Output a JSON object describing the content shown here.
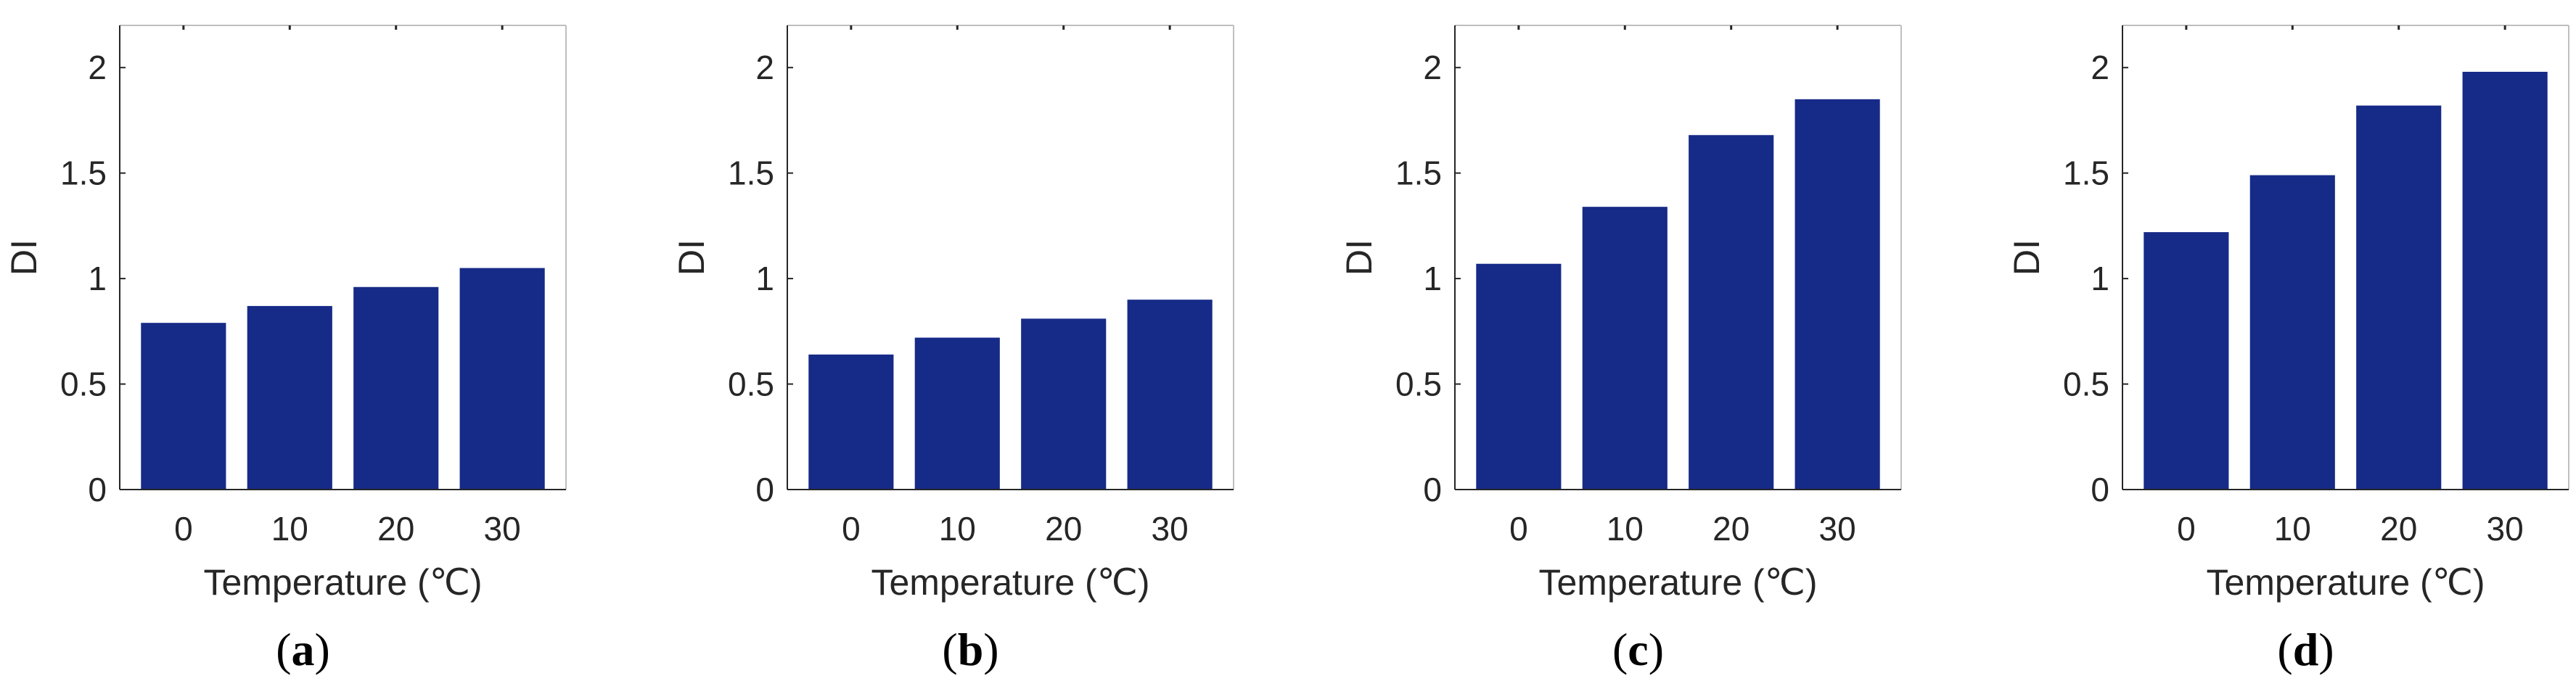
{
  "chart_data": [
    {
      "type": "bar",
      "panel_label": "a",
      "categories": [
        "0",
        "10",
        "20",
        "30"
      ],
      "values": [
        0.79,
        0.87,
        0.96,
        1.05
      ],
      "xlabel": "Temperature (℃)",
      "ylabel": "DI",
      "ylim": [
        0,
        2.2
      ],
      "yticks": [
        "0",
        "0.5",
        "1",
        "1.5",
        "2"
      ],
      "bar_color": "#162a87",
      "grid": false
    },
    {
      "type": "bar",
      "panel_label": "b",
      "categories": [
        "0",
        "10",
        "20",
        "30"
      ],
      "values": [
        0.64,
        0.72,
        0.81,
        0.9
      ],
      "xlabel": "Temperature (℃)",
      "ylabel": "DI",
      "ylim": [
        0,
        2.2
      ],
      "yticks": [
        "0",
        "0.5",
        "1",
        "1.5",
        "2"
      ],
      "bar_color": "#162a87",
      "grid": false
    },
    {
      "type": "bar",
      "panel_label": "c",
      "categories": [
        "0",
        "10",
        "20",
        "30"
      ],
      "values": [
        1.07,
        1.34,
        1.68,
        1.85
      ],
      "xlabel": "Temperature (℃)",
      "ylabel": "DI",
      "ylim": [
        0,
        2.2
      ],
      "yticks": [
        "0",
        "0.5",
        "1",
        "1.5",
        "2"
      ],
      "bar_color": "#162a87",
      "grid": false
    },
    {
      "type": "bar",
      "panel_label": "d",
      "categories": [
        "0",
        "10",
        "20",
        "30"
      ],
      "values": [
        1.22,
        1.49,
        1.82,
        1.98
      ],
      "xlabel": "Temperature (℃)",
      "ylabel": "DI",
      "ylim": [
        0,
        2.2
      ],
      "yticks": [
        "0",
        "0.5",
        "1",
        "1.5",
        "2"
      ],
      "bar_color": "#162a87",
      "grid": false
    }
  ],
  "colors": {
    "axis": "#262626",
    "frame": "#bfbfbf",
    "background": "#ffffff"
  }
}
